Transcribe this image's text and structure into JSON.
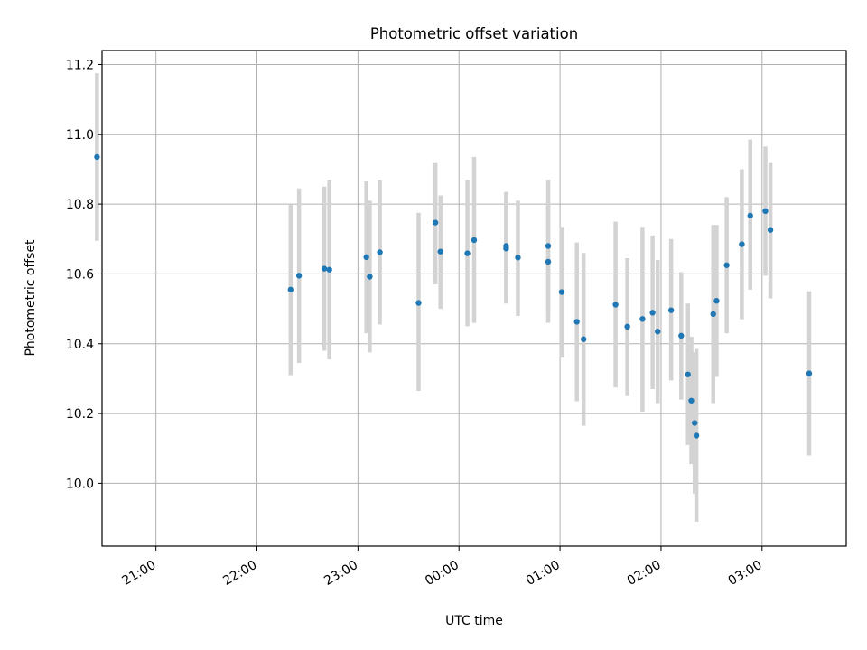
{
  "chart_data": {
    "type": "scatter",
    "title": "Photometric offset variation",
    "xlabel": "UTC time",
    "ylabel": "Photometric offset",
    "xlim": [
      "20:28",
      "03:50"
    ],
    "ylim": [
      9.82,
      11.24
    ],
    "xticks": [
      "21:00",
      "22:00",
      "23:00",
      "00:00",
      "01:00",
      "02:00",
      "03:00"
    ],
    "yticks": [
      "10.0",
      "10.2",
      "10.4",
      "10.6",
      "10.8",
      "11.0",
      "11.2"
    ],
    "grid": true,
    "legend": "none",
    "points": [
      {
        "t": "20:25",
        "y": 10.935,
        "lo": 10.695,
        "hi": 11.175
      },
      {
        "t": "22:20",
        "y": 10.555,
        "lo": 10.31,
        "hi": 10.8
      },
      {
        "t": "22:25",
        "y": 10.595,
        "lo": 10.345,
        "hi": 10.845
      },
      {
        "t": "22:40",
        "y": 10.615,
        "lo": 10.38,
        "hi": 10.85
      },
      {
        "t": "22:43",
        "y": 10.612,
        "lo": 10.355,
        "hi": 10.87
      },
      {
        "t": "23:05",
        "y": 10.648,
        "lo": 10.43,
        "hi": 10.865
      },
      {
        "t": "23:07",
        "y": 10.592,
        "lo": 10.375,
        "hi": 10.81
      },
      {
        "t": "23:13",
        "y": 10.662,
        "lo": 10.455,
        "hi": 10.87
      },
      {
        "t": "23:36",
        "y": 10.517,
        "lo": 10.265,
        "hi": 10.775
      },
      {
        "t": "23:46",
        "y": 10.747,
        "lo": 10.57,
        "hi": 10.92
      },
      {
        "t": "23:49",
        "y": 10.664,
        "lo": 10.5,
        "hi": 10.825
      },
      {
        "t": "00:05",
        "y": 10.659,
        "lo": 10.45,
        "hi": 10.87
      },
      {
        "t": "00:09",
        "y": 10.697,
        "lo": 10.46,
        "hi": 10.935
      },
      {
        "t": "00:28",
        "y": 10.68,
        "lo": 10.525,
        "hi": 10.835
      },
      {
        "t": "00:28",
        "y": 10.673,
        "lo": 10.515,
        "hi": 10.83
      },
      {
        "t": "00:35",
        "y": 10.647,
        "lo": 10.48,
        "hi": 10.81
      },
      {
        "t": "00:53",
        "y": 10.68,
        "lo": 10.49,
        "hi": 10.87
      },
      {
        "t": "00:53",
        "y": 10.635,
        "lo": 10.46,
        "hi": 10.81
      },
      {
        "t": "01:01",
        "y": 10.548,
        "lo": 10.36,
        "hi": 10.735
      },
      {
        "t": "01:10",
        "y": 10.463,
        "lo": 10.235,
        "hi": 10.69
      },
      {
        "t": "01:14",
        "y": 10.413,
        "lo": 10.165,
        "hi": 10.66
      },
      {
        "t": "01:33",
        "y": 10.512,
        "lo": 10.275,
        "hi": 10.75
      },
      {
        "t": "01:40",
        "y": 10.449,
        "lo": 10.25,
        "hi": 10.645
      },
      {
        "t": "01:49",
        "y": 10.471,
        "lo": 10.205,
        "hi": 10.735
      },
      {
        "t": "01:55",
        "y": 10.489,
        "lo": 10.27,
        "hi": 10.71
      },
      {
        "t": "01:58",
        "y": 10.435,
        "lo": 10.23,
        "hi": 10.64
      },
      {
        "t": "02:06",
        "y": 10.496,
        "lo": 10.295,
        "hi": 10.7
      },
      {
        "t": "02:12",
        "y": 10.423,
        "lo": 10.24,
        "hi": 10.605
      },
      {
        "t": "02:16",
        "y": 10.312,
        "lo": 10.11,
        "hi": 10.515
      },
      {
        "t": "02:18",
        "y": 10.237,
        "lo": 10.055,
        "hi": 10.42
      },
      {
        "t": "02:20",
        "y": 10.173,
        "lo": 9.97,
        "hi": 10.375
      },
      {
        "t": "02:21",
        "y": 10.137,
        "lo": 9.89,
        "hi": 10.385
      },
      {
        "t": "02:31",
        "y": 10.485,
        "lo": 10.23,
        "hi": 10.74
      },
      {
        "t": "02:33",
        "y": 10.523,
        "lo": 10.305,
        "hi": 10.74
      },
      {
        "t": "02:39",
        "y": 10.625,
        "lo": 10.43,
        "hi": 10.82
      },
      {
        "t": "02:48",
        "y": 10.685,
        "lo": 10.47,
        "hi": 10.9
      },
      {
        "t": "02:53",
        "y": 10.767,
        "lo": 10.555,
        "hi": 10.985
      },
      {
        "t": "03:02",
        "y": 10.78,
        "lo": 10.595,
        "hi": 10.965
      },
      {
        "t": "03:05",
        "y": 10.726,
        "lo": 10.53,
        "hi": 10.92
      },
      {
        "t": "03:28",
        "y": 10.315,
        "lo": 10.08,
        "hi": 10.55
      }
    ],
    "colors": {
      "point": "#1f77b4",
      "errorbar": "#d3d3d3",
      "grid": "#b0b0b0",
      "axes": "#000000"
    }
  }
}
